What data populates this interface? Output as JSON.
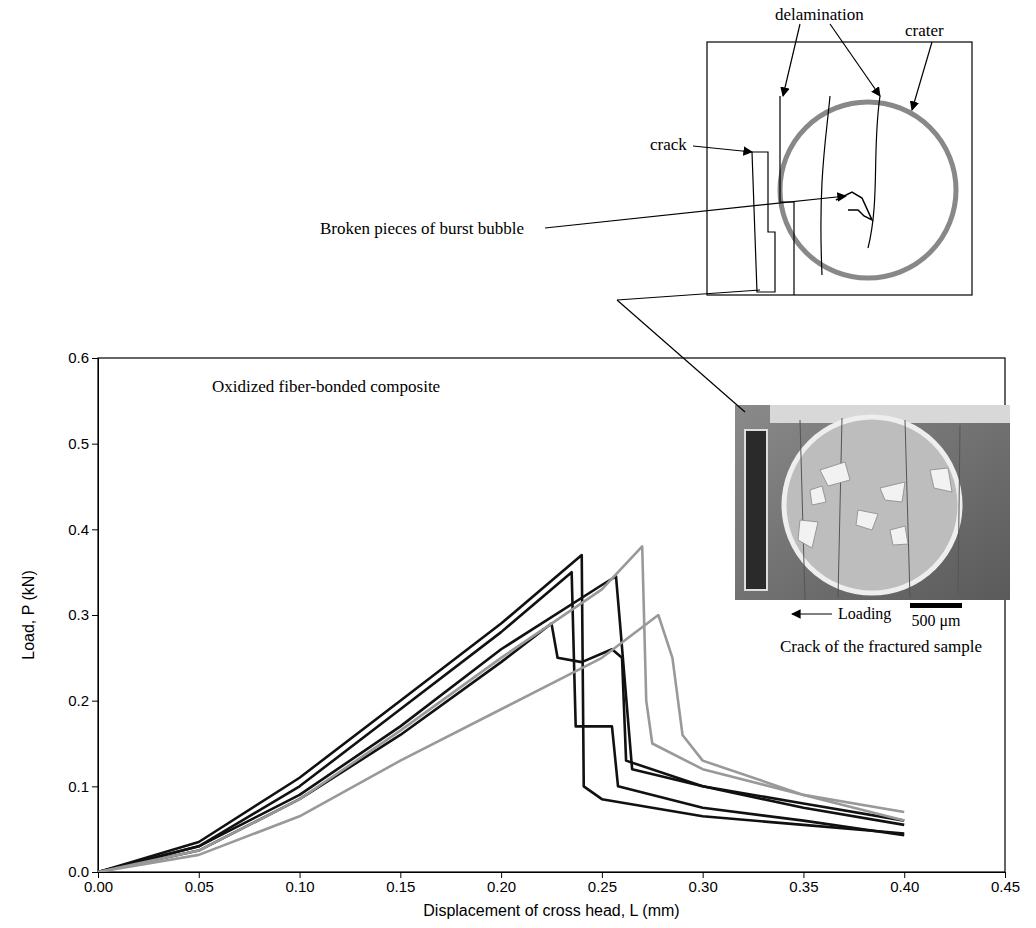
{
  "chart_data": {
    "type": "line",
    "xlabel": "Displacement of cross head, L (mm)",
    "ylabel": "Load, P (kN)",
    "xlim": [
      0,
      0.45
    ],
    "ylim": [
      0,
      0.6
    ],
    "xticks": [
      {
        "value": 0,
        "label": "0.00"
      },
      {
        "value": 0.05,
        "label": "0.05"
      },
      {
        "value": 0.1,
        "label": "0.10"
      },
      {
        "value": 0.15,
        "label": "0.15"
      },
      {
        "value": 0.2,
        "label": "0.20"
      },
      {
        "value": 0.25,
        "label": "0.25"
      },
      {
        "value": 0.3,
        "label": "0.30"
      },
      {
        "value": 0.35,
        "label": "0.35"
      },
      {
        "value": 0.4,
        "label": "0.40"
      },
      {
        "value": 0.45,
        "label": "0.45"
      }
    ],
    "yticks": [
      {
        "value": 0,
        "label": "0.0"
      },
      {
        "value": 0.1,
        "label": "0.1"
      },
      {
        "value": 0.2,
        "label": "0.2"
      },
      {
        "value": 0.3,
        "label": "0.3"
      },
      {
        "value": 0.4,
        "label": "0.4"
      },
      {
        "value": 0.5,
        "label": "0.5"
      },
      {
        "value": 0.6,
        "label": "0.6"
      }
    ],
    "grid": false,
    "series": [
      {
        "color": "#111111",
        "x": [
          0,
          0.05,
          0.1,
          0.15,
          0.2,
          0.24,
          0.241,
          0.25,
          0.3,
          0.35,
          0.4
        ],
        "values": [
          0,
          0.035,
          0.11,
          0.2,
          0.29,
          0.37,
          0.1,
          0.085,
          0.065,
          0.055,
          0.045
        ]
      },
      {
        "color": "#111111",
        "x": [
          0,
          0.05,
          0.1,
          0.15,
          0.2,
          0.25,
          0.257,
          0.259,
          0.265,
          0.3,
          0.35,
          0.4
        ],
        "values": [
          0,
          0.03,
          0.09,
          0.17,
          0.26,
          0.335,
          0.345,
          0.29,
          0.12,
          0.1,
          0.075,
          0.055
        ]
      },
      {
        "color": "#111111",
        "x": [
          0,
          0.05,
          0.1,
          0.15,
          0.2,
          0.225,
          0.228,
          0.24,
          0.255,
          0.26,
          0.262,
          0.3,
          0.35,
          0.4
        ],
        "values": [
          0,
          0.025,
          0.085,
          0.16,
          0.245,
          0.29,
          0.25,
          0.245,
          0.26,
          0.25,
          0.13,
          0.1,
          0.08,
          0.06
        ]
      },
      {
        "color": "#111111",
        "x": [
          0,
          0.05,
          0.1,
          0.15,
          0.2,
          0.235,
          0.237,
          0.255,
          0.258,
          0.3,
          0.35,
          0.4
        ],
        "values": [
          0,
          0.03,
          0.1,
          0.19,
          0.28,
          0.35,
          0.17,
          0.17,
          0.1,
          0.075,
          0.06,
          0.043
        ]
      },
      {
        "color": "#999999",
        "x": [
          0,
          0.05,
          0.1,
          0.15,
          0.2,
          0.25,
          0.27,
          0.272,
          0.275,
          0.3,
          0.35,
          0.4
        ],
        "values": [
          0,
          0.025,
          0.085,
          0.165,
          0.25,
          0.33,
          0.38,
          0.2,
          0.15,
          0.12,
          0.09,
          0.06
        ]
      },
      {
        "color": "#999999",
        "x": [
          0,
          0.05,
          0.1,
          0.15,
          0.2,
          0.25,
          0.278,
          0.285,
          0.29,
          0.3,
          0.35,
          0.4
        ],
        "values": [
          0,
          0.02,
          0.065,
          0.13,
          0.19,
          0.25,
          0.3,
          0.25,
          0.16,
          0.13,
          0.09,
          0.07
        ]
      }
    ],
    "annotations": [
      "Oxidized fiber-bonded composite",
      "Crack of the fractured sample",
      "Loading",
      "500 μm",
      "delamination",
      "crater",
      "crack",
      "Broken pieces of burst bubble"
    ]
  }
}
